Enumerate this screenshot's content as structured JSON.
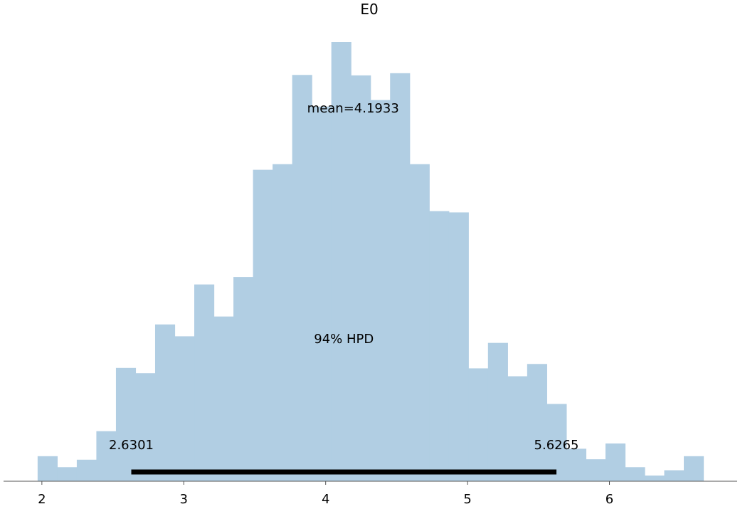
{
  "chart_data": {
    "type": "bar",
    "title": "E0",
    "xlabel": "",
    "ylabel": "",
    "xlim": [
      1.73,
      6.9
    ],
    "ylim": [
      0,
      1
    ],
    "xticks": [
      2,
      3,
      4,
      5,
      6
    ],
    "bar_color": "#b1cee3",
    "hpd_color": "#000000",
    "bins": {
      "edges": [
        1.97,
        2.108,
        2.246,
        2.384,
        2.522,
        2.66,
        2.798,
        2.936,
        3.074,
        3.212,
        3.35,
        3.488,
        3.626,
        3.764,
        3.902,
        4.04,
        4.178,
        4.316,
        4.454,
        4.592,
        4.73,
        4.868,
        5.006,
        5.144,
        5.282,
        5.42,
        5.558,
        5.696,
        5.834,
        5.972,
        6.11,
        6.248,
        6.386,
        6.524,
        6.662
      ],
      "heights": [
        0.057,
        0.032,
        0.049,
        0.114,
        0.258,
        0.246,
        0.357,
        0.33,
        0.448,
        0.375,
        0.465,
        0.709,
        0.722,
        0.925,
        0.853,
        1.0,
        0.924,
        0.868,
        0.929,
        0.722,
        0.615,
        0.612,
        0.257,
        0.315,
        0.239,
        0.267,
        0.176,
        0.074,
        0.05,
        0.086,
        0.032,
        0.013,
        0.025,
        0.057
      ]
    },
    "mean": 4.1933,
    "mean_label": "mean=4.1933",
    "hpd": {
      "prob_label": "94% HPD",
      "low": 2.6301,
      "high": 5.6265,
      "low_label": "2.6301",
      "high_label": "5.6265"
    }
  }
}
